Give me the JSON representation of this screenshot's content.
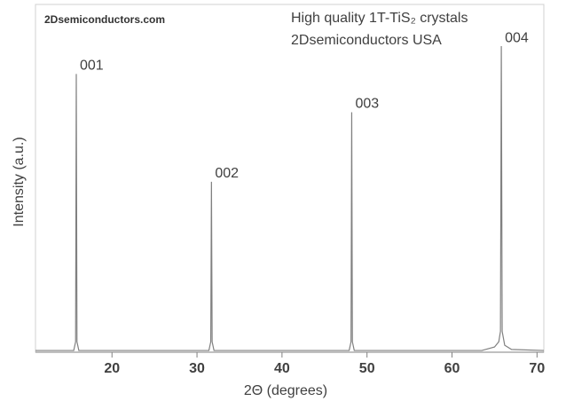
{
  "chart_data": {
    "type": "line",
    "watermark": "2Dsemiconductors.com",
    "title": "High quality 1T-TiS₂ crystals",
    "subtitle": "2Dsemiconductors USA",
    "xlabel": "2Θ (degrees)",
    "ylabel": "Intensity (a.u.)",
    "color": "#808080",
    "x": [
      11,
      15.5,
      15.72,
      15.8,
      15.88,
      16.1,
      31.4,
      31.62,
      31.7,
      31.78,
      32.0,
      47.9,
      48.12,
      48.2,
      48.28,
      48.5,
      63.5,
      65.0,
      65.5,
      65.7,
      65.8,
      65.9,
      66.2,
      67.0,
      70.8
    ],
    "values": [
      0.5,
      0.5,
      3,
      80,
      3,
      0.5,
      0.5,
      3,
      49,
      3,
      0.5,
      0.5,
      3,
      69,
      3,
      0.5,
      0.5,
      1.5,
      3,
      6,
      88,
      6,
      2,
      0.8,
      0.5
    ],
    "annotations": [
      {
        "text": "001",
        "x": 15.8,
        "y": 80
      },
      {
        "text": "002",
        "x": 31.7,
        "y": 49
      },
      {
        "text": "003",
        "x": 48.2,
        "y": 69
      },
      {
        "text": "004",
        "x": 65.8,
        "y": 88
      }
    ],
    "xlim": [
      11,
      70.8
    ],
    "ylim": [
      0,
      100
    ],
    "xticks": [
      20,
      30,
      40,
      50,
      60,
      70
    ]
  }
}
